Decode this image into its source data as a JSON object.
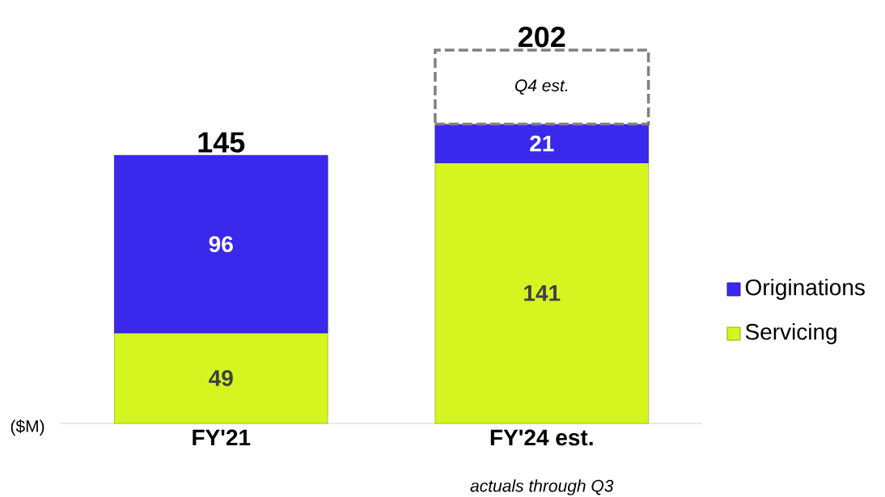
{
  "chart_data": {
    "type": "bar",
    "stacked": true,
    "categories": [
      "FY'21",
      "FY'24 est."
    ],
    "series": [
      {
        "name": "Servicing",
        "color": "#d4f51f",
        "values": [
          49,
          141
        ],
        "value_labels": [
          "49",
          "141"
        ]
      },
      {
        "name": "Originations",
        "color": "#3a28ec",
        "values": [
          96,
          21
        ],
        "value_labels": [
          "96",
          "21"
        ]
      },
      {
        "name": "Q4 est.",
        "color": "#ffffff",
        "line_style": "dashed",
        "values": [
          null,
          40
        ]
      }
    ],
    "totals": [
      "145",
      "202"
    ],
    "legend": "right",
    "tick_labels": "x",
    "annotations": [
      "($M)",
      "actuals through Q3"
    ]
  }
}
